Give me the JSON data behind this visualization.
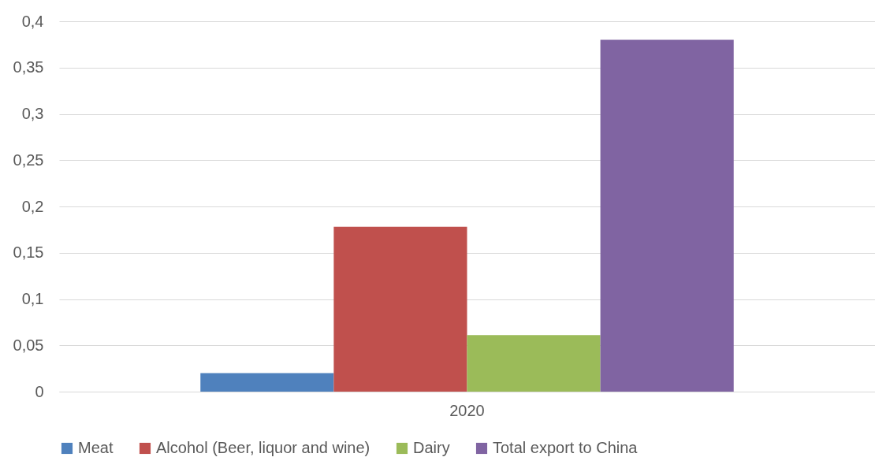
{
  "chart_data": {
    "type": "bar",
    "categories": [
      "2020"
    ],
    "series": [
      {
        "name": "Meat",
        "color": "#4f81bd",
        "values": [
          0.02
        ]
      },
      {
        "name": "Alcohol (Beer, liquor and wine)",
        "color": "#c0504d",
        "values": [
          0.178
        ]
      },
      {
        "name": "Dairy",
        "color": "#9bbb59",
        "values": [
          0.061
        ]
      },
      {
        "name": "Total export to China",
        "color": "#8064a2",
        "values": [
          0.38
        ]
      }
    ],
    "ylim": [
      0,
      0.4
    ],
    "yticks": [
      0,
      {
        "value": 0.05,
        "label": "0,05"
      },
      {
        "value": 0.1,
        "label": "0,1"
      },
      {
        "value": 0.15,
        "label": "0,15"
      },
      {
        "value": 0.2,
        "label": "0,2"
      },
      {
        "value": 0.25,
        "label": "0,25"
      },
      {
        "value": 0.3,
        "label": "0,3"
      },
      {
        "value": 0.35,
        "label": "0,35"
      },
      {
        "value": 0.4,
        "label": "0,4"
      }
    ],
    "grid": "y",
    "legend": "bottom"
  }
}
